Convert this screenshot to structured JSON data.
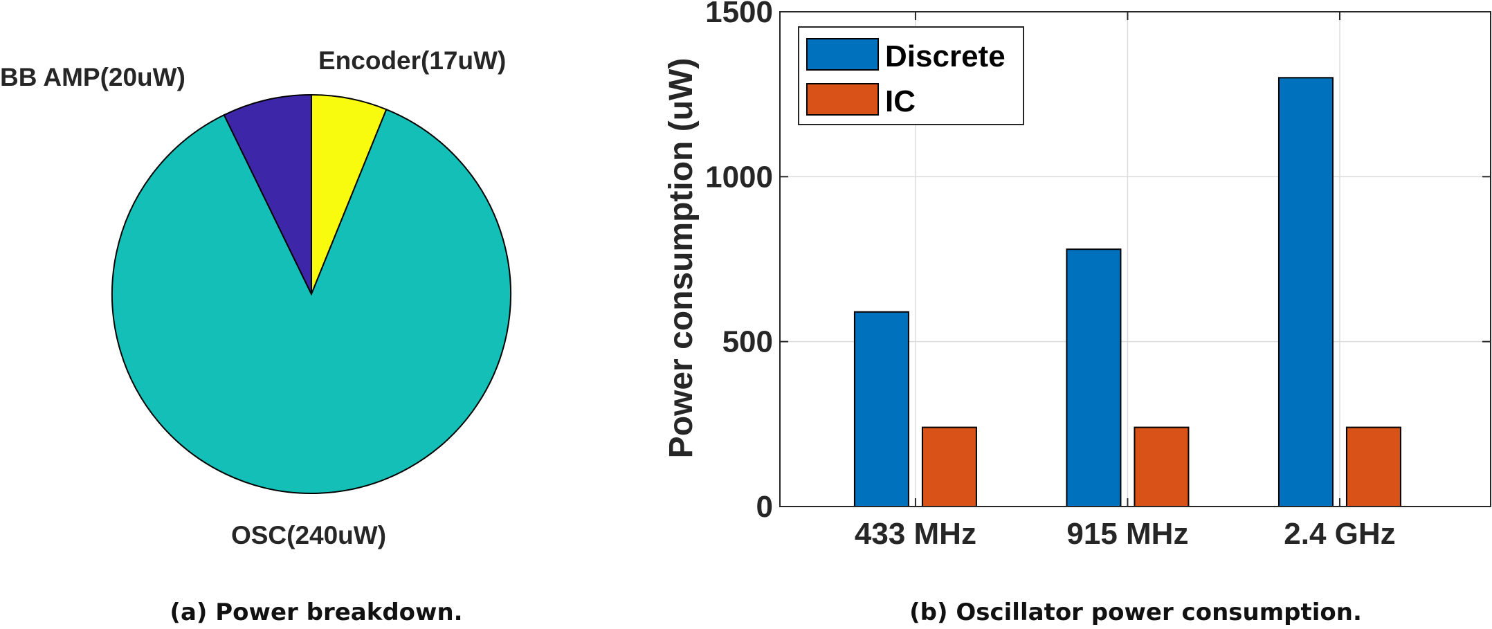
{
  "chart_data": [
    {
      "type": "pie",
      "caption": "(a) Power breakdown.",
      "slices": [
        {
          "name": "OSC",
          "label": "OSC(240uW)",
          "value": 240,
          "color": "#13bfb7"
        },
        {
          "name": "BB AMP",
          "label": "BB AMP(20uW)",
          "value": 20,
          "color": "#3d26a8"
        },
        {
          "name": "Encoder",
          "label": "Encoder(17uW)",
          "value": 17,
          "color": "#f9fb0e"
        }
      ]
    },
    {
      "type": "bar",
      "caption": "(b) Oscillator power consumption.",
      "categories": [
        "433 MHz",
        "915 MHz",
        "2.4 GHz"
      ],
      "series": [
        {
          "name": "Discrete",
          "values": [
            590,
            780,
            1300
          ],
          "color": "#0072bd"
        },
        {
          "name": "IC",
          "values": [
            240,
            240,
            240
          ],
          "color": "#d95319"
        }
      ],
      "xlabel": "",
      "ylabel": "Power consumption (uW)",
      "ylim": [
        0,
        1500
      ],
      "yticks": [
        0,
        500,
        1000,
        1500
      ],
      "grid": true,
      "legend": "top-left"
    }
  ]
}
